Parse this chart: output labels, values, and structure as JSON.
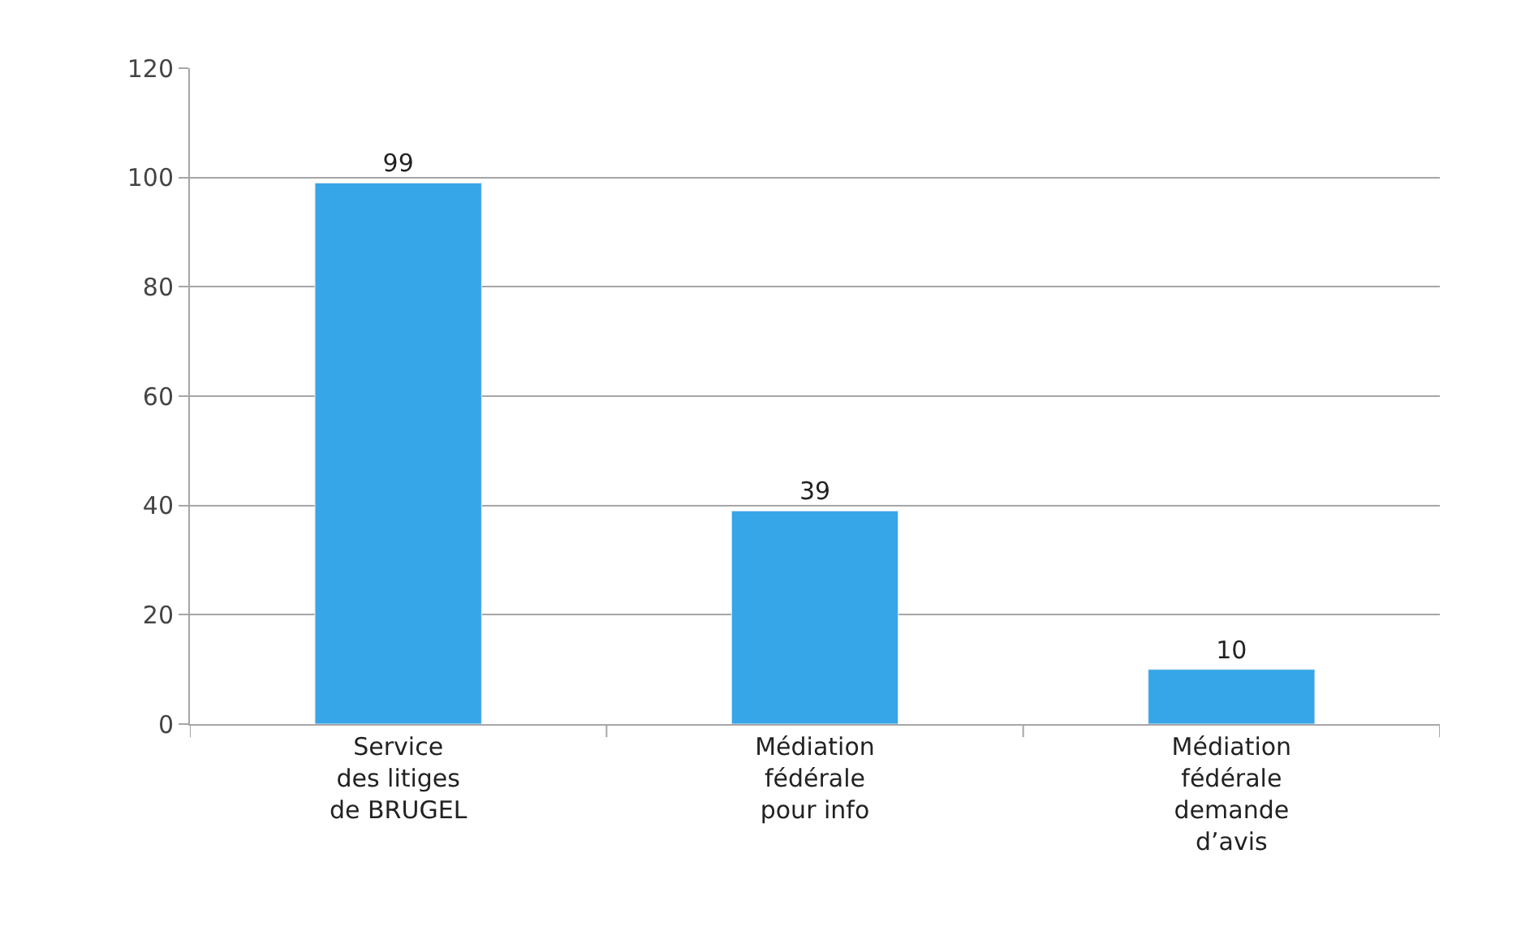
{
  "chart_data": {
    "type": "bar",
    "categories": [
      "Service\ndes litiges\nde BRUGEL",
      "Médiation\nfédérale\npour info",
      "Médiation\nfédérale\ndemande\nd’avis"
    ],
    "values": [
      99,
      39,
      10
    ],
    "color": "#36a6e8",
    "ylim": [
      0,
      120
    ],
    "yticks": [
      0,
      20,
      40,
      60,
      80,
      100,
      120
    ],
    "grid": "y",
    "data_labels": true,
    "legend": false
  }
}
